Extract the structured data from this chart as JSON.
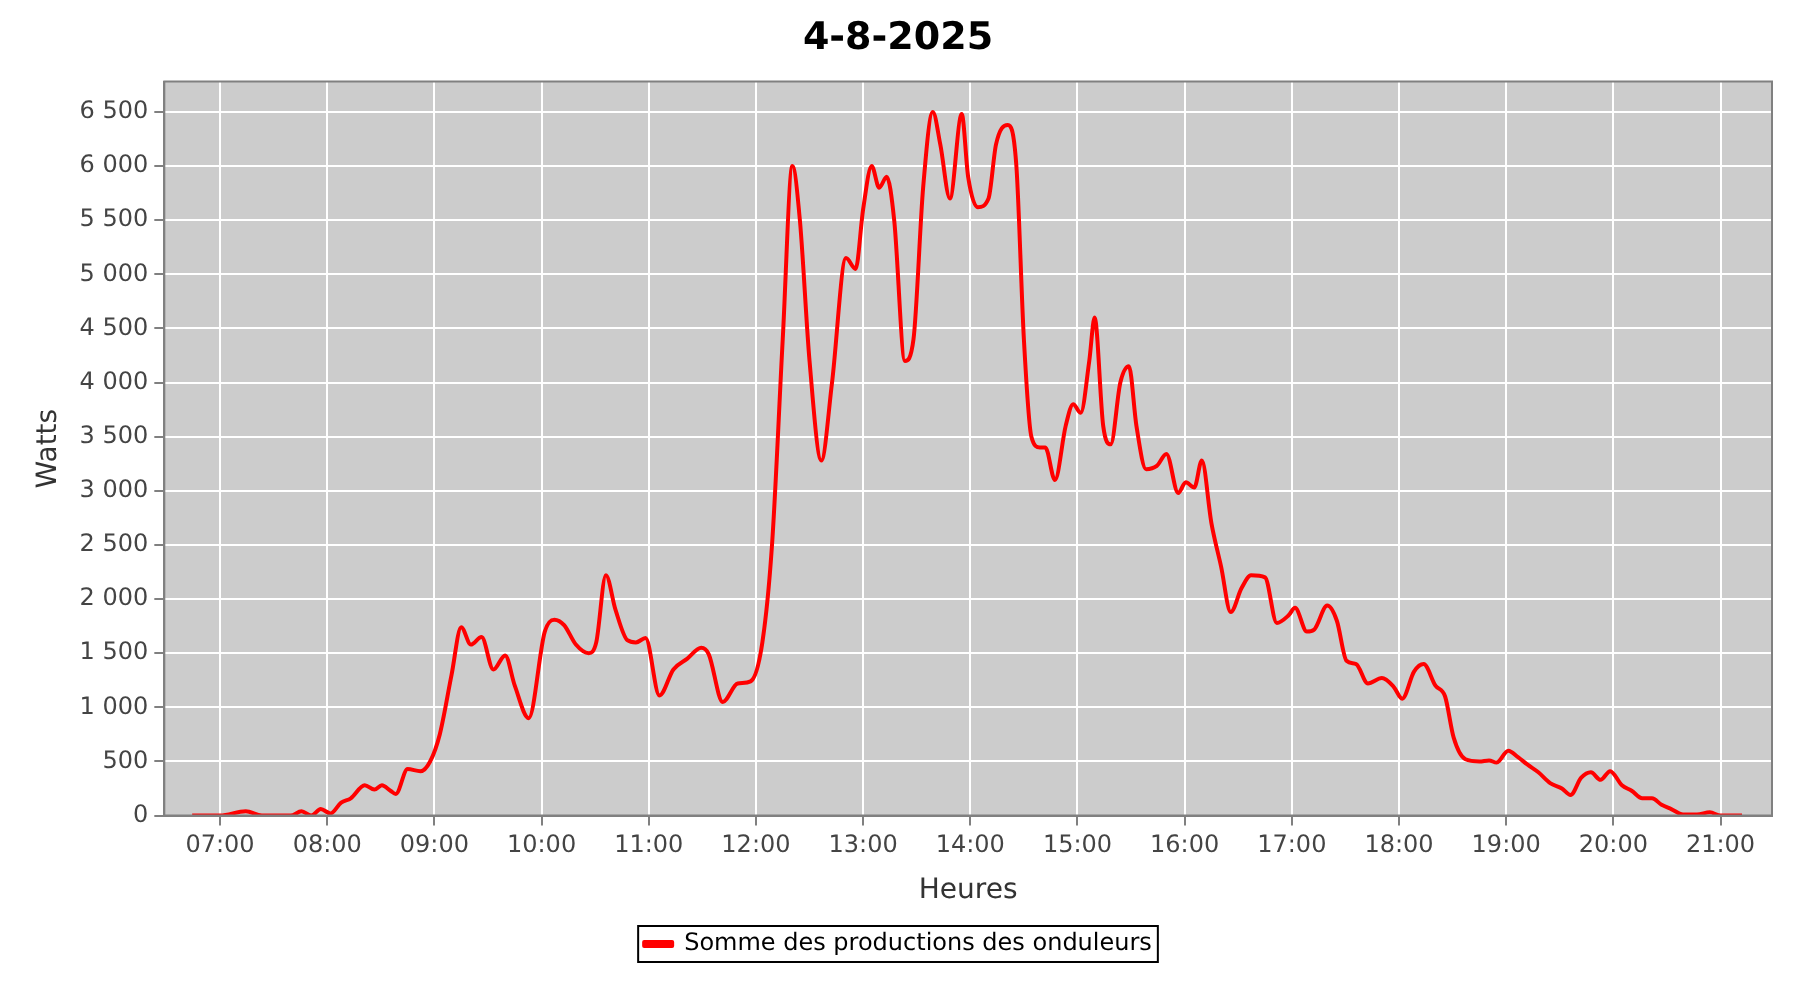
{
  "chart_data": {
    "type": "line",
    "title": "4-8-2025",
    "xlabel": "Heures",
    "ylabel": "Watts",
    "xlim": [
      6.48,
      21.48
    ],
    "xticks": [
      {
        "value": 7,
        "label": "07:00"
      },
      {
        "value": 8,
        "label": "08:00"
      },
      {
        "value": 9,
        "label": "09:00"
      },
      {
        "value": 10,
        "label": "10:00"
      },
      {
        "value": 11,
        "label": "11:00"
      },
      {
        "value": 12,
        "label": "12:00"
      },
      {
        "value": 13,
        "label": "13:00"
      },
      {
        "value": 14,
        "label": "14:00"
      },
      {
        "value": 15,
        "label": "15:00"
      },
      {
        "value": 16,
        "label": "16:00"
      },
      {
        "value": 17,
        "label": "17:00"
      },
      {
        "value": 18,
        "label": "18:00"
      },
      {
        "value": 19,
        "label": "19:00"
      },
      {
        "value": 20,
        "label": "20:00"
      },
      {
        "value": 21,
        "label": "21:00"
      }
    ],
    "ylim": [
      0,
      6780
    ],
    "yticks": [
      0,
      500,
      {
        "value": 1000,
        "label": "1 000"
      },
      {
        "value": 1500,
        "label": "1 500"
      },
      {
        "value": 2000,
        "label": "2 000"
      },
      {
        "value": 2500,
        "label": "2 500"
      },
      {
        "value": 3000,
        "label": "3 000"
      },
      {
        "value": 3500,
        "label": "3 500"
      },
      {
        "value": 4000,
        "label": "4 000"
      },
      {
        "value": 4500,
        "label": "4 500"
      },
      {
        "value": 5000,
        "label": "5 000"
      },
      {
        "value": 5500,
        "label": "5 500"
      },
      {
        "value": 6000,
        "label": "6 000"
      },
      {
        "value": 6500,
        "label": "6 500"
      }
    ],
    "grid": true,
    "legend": "bottom",
    "marker": "none",
    "line_style": "solid",
    "series": [
      {
        "name": "Somme des productions des onduleurs",
        "color": "#ff0000",
        "x": [
          6.74,
          7.0,
          7.24,
          7.39,
          7.66,
          7.76,
          7.85,
          7.94,
          8.03,
          8.13,
          8.22,
          8.35,
          8.44,
          8.51,
          8.59,
          8.64,
          8.75,
          8.87,
          8.96,
          9.05,
          9.16,
          9.25,
          9.34,
          9.44,
          9.55,
          9.66,
          9.75,
          9.88,
          10.03,
          10.12,
          10.21,
          10.32,
          10.44,
          10.51,
          10.6,
          10.69,
          10.8,
          10.88,
          10.97,
          11.1,
          11.23,
          11.36,
          11.49,
          11.56,
          11.69,
          11.83,
          11.95,
          12.06,
          12.15,
          12.25,
          12.34,
          12.41,
          12.5,
          12.61,
          12.71,
          12.84,
          12.93,
          13.0,
          13.08,
          13.15,
          13.22,
          13.29,
          13.39,
          13.47,
          13.56,
          13.65,
          13.72,
          13.81,
          13.92,
          13.98,
          14.07,
          14.17,
          14.24,
          14.35,
          14.43,
          14.5,
          14.57,
          14.65,
          14.7,
          14.79,
          14.89,
          14.96,
          15.03,
          15.11,
          15.16,
          15.24,
          15.31,
          15.4,
          15.48,
          15.55,
          15.64,
          15.74,
          15.83,
          15.94,
          16.01,
          16.09,
          16.16,
          16.25,
          16.34,
          16.43,
          16.53,
          16.62,
          16.75,
          16.86,
          16.97,
          17.03,
          17.14,
          17.21,
          17.33,
          17.42,
          17.51,
          17.6,
          17.71,
          17.84,
          17.95,
          18.03,
          18.14,
          18.23,
          18.34,
          18.43,
          18.51,
          18.62,
          18.75,
          18.84,
          18.91,
          19.02,
          19.11,
          19.2,
          19.3,
          19.41,
          19.52,
          19.6,
          19.7,
          19.79,
          19.88,
          19.97,
          20.08,
          20.17,
          20.27,
          20.36,
          20.45,
          20.54,
          20.65,
          20.78,
          20.9,
          21.0,
          21.2
        ],
        "values": [
          0,
          0,
          40,
          0,
          0,
          40,
          0,
          60,
          20,
          120,
          160,
          280,
          240,
          280,
          230,
          200,
          430,
          410,
          500,
          750,
          1300,
          1740,
          1580,
          1650,
          1350,
          1480,
          1200,
          900,
          1700,
          1810,
          1760,
          1580,
          1500,
          1600,
          2220,
          1900,
          1620,
          1600,
          1640,
          1110,
          1350,
          1450,
          1550,
          1490,
          1050,
          1220,
          1240,
          1600,
          2500,
          4400,
          6000,
          5500,
          4200,
          3280,
          4000,
          5150,
          5050,
          5600,
          6000,
          5800,
          5900,
          5500,
          4200,
          4400,
          5800,
          6500,
          6200,
          5700,
          6480,
          5900,
          5620,
          5700,
          6200,
          6380,
          6000,
          4400,
          3500,
          3400,
          3400,
          3100,
          3600,
          3800,
          3720,
          4200,
          4600,
          3600,
          3430,
          4000,
          4150,
          3600,
          3200,
          3230,
          3340,
          2980,
          3080,
          3030,
          3280,
          2700,
          2300,
          1880,
          2100,
          2220,
          2200,
          1780,
          1850,
          1920,
          1700,
          1720,
          1940,
          1800,
          1430,
          1400,
          1220,
          1270,
          1190,
          1080,
          1330,
          1400,
          1200,
          1100,
          720,
          520,
          500,
          510,
          490,
          600,
          540,
          470,
          400,
          300,
          250,
          190,
          350,
          400,
          330,
          410,
          280,
          230,
          160,
          160,
          100,
          60,
          10,
          10,
          30,
          0,
          0
        ]
      }
    ]
  }
}
